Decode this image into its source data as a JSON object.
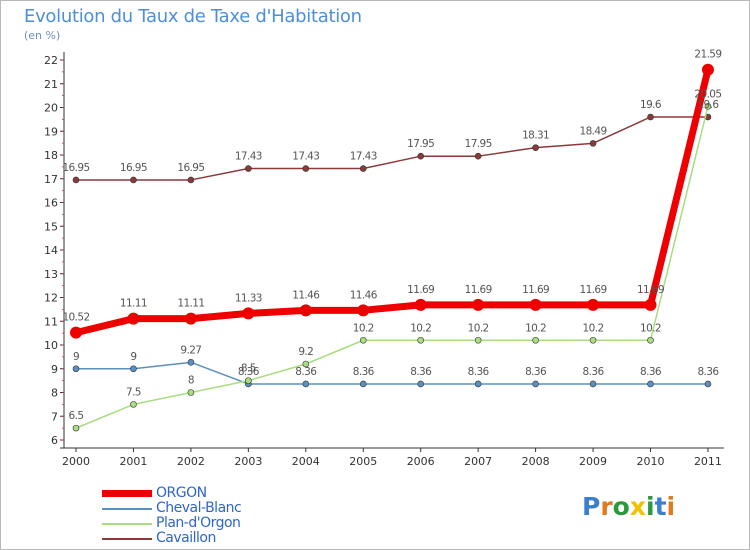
{
  "title": "Evolution du Taux de Taxe d'Habitation",
  "subtitle": "(en %)",
  "logo": {
    "text": "Proxiti",
    "letters": [
      "P",
      "r",
      "o",
      "x",
      "i",
      "t",
      "i"
    ],
    "colors": [
      "#3a7fd0",
      "#e07a20",
      "#2a9a3a",
      "#f2c200",
      "#2a9a3a",
      "#3a7fd0",
      "#e07a20"
    ]
  },
  "chart_data": {
    "type": "line",
    "x": [
      "2000",
      "2001",
      "2002",
      "2003",
      "2004",
      "2005",
      "2006",
      "2007",
      "2008",
      "2009",
      "2010",
      "2011"
    ],
    "ylim": [
      6,
      22
    ],
    "yticks": [
      6,
      7,
      8,
      9,
      10,
      11,
      12,
      13,
      14,
      15,
      16,
      17,
      18,
      19,
      20,
      21,
      22
    ],
    "grid": false,
    "legend_position": "bottom-left",
    "series": [
      {
        "name": "ORGON",
        "color": "#ee0000",
        "width": 7,
        "marker": 6,
        "label_color": "#555555",
        "values": [
          10.52,
          11.11,
          11.11,
          11.33,
          11.46,
          11.46,
          11.69,
          11.69,
          11.69,
          11.69,
          11.69,
          21.59
        ],
        "labels": [
          "10.52",
          "11.11",
          "11.11",
          "11.33",
          "11.46",
          "11.46",
          "11.69",
          "11.69",
          "11.69",
          "11.69",
          "11.69",
          "21.59"
        ]
      },
      {
        "name": "Cheval-Blanc",
        "color": "#5b8fc0",
        "width": 1.5,
        "marker": 3,
        "label_color": "#555555",
        "values": [
          9,
          9,
          9.27,
          8.36,
          8.36,
          8.36,
          8.36,
          8.36,
          8.36,
          8.36,
          8.36,
          8.36
        ],
        "labels": [
          "9",
          "9",
          "9.27",
          "8.36",
          "8.36",
          "8.36",
          "8.36",
          "8.36",
          "8.36",
          "8.36",
          "8.36",
          "8.36"
        ]
      },
      {
        "name": "Plan-d'Orgon",
        "color": "#a8dd80",
        "width": 1.5,
        "marker": 3,
        "label_color": "#555555",
        "values": [
          6.5,
          7.5,
          8,
          8.5,
          9.2,
          10.2,
          10.2,
          10.2,
          10.2,
          10.2,
          10.2,
          20.05
        ],
        "labels": [
          "6.5",
          "7.5",
          "8",
          "8.5",
          "9.2",
          "10.2",
          "10.2",
          "10.2",
          "10.2",
          "10.2",
          "10.2",
          "20.05"
        ]
      },
      {
        "name": "Cavaillon",
        "color": "#8b3a3a",
        "width": 1.5,
        "marker": 3,
        "label_color": "#555555",
        "values": [
          16.95,
          16.95,
          16.95,
          17.43,
          17.43,
          17.43,
          17.95,
          17.95,
          18.31,
          18.49,
          19.6,
          19.6
        ],
        "labels": [
          "16.95",
          "16.95",
          "16.95",
          "17.43",
          "17.43",
          "17.43",
          "17.95",
          "17.95",
          "18.31",
          "18.49",
          "19.6",
          "19.6"
        ]
      }
    ]
  }
}
